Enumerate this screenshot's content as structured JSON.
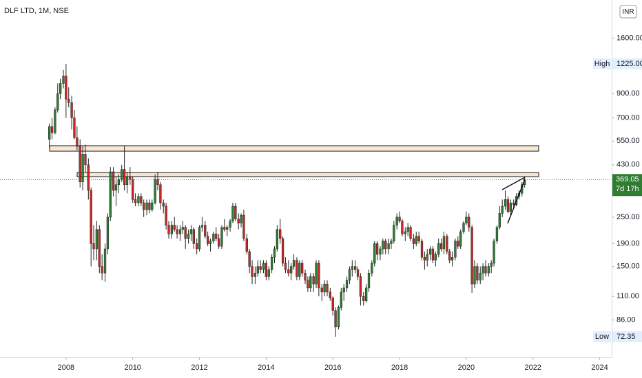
{
  "chart_data": {
    "type": "candlestick",
    "title": "DLF LTD, 1M, NSE",
    "currency": "INR",
    "countdown": "7d 17h",
    "high": {
      "label": "High",
      "value": {
        "value": 1225,
        "label": "1225.00"
      }
    },
    "low": {
      "label": "Low",
      "value": 72.35
    },
    "up_color": "#2e7d32",
    "down_color": "#c62828",
    "wick_color": "#222222",
    "log_scale": true,
    "grid": false,
    "xlim": [
      2006.02,
      2024.36
    ],
    "xticks": [
      2008,
      2010,
      2012,
      2014,
      2016,
      2018,
      2020,
      2022,
      2024
    ],
    "ylim": [
      58.4,
      2375
    ],
    "yticks": [
      {
        "value": 1600,
        "label": "1600.00"
      },
      {
        "value": 900,
        "label": "900.00"
      },
      {
        "value": 700,
        "label": "700.00"
      },
      {
        "value": 550,
        "label": "550.00"
      },
      {
        "value": 430,
        "label": "430.00"
      },
      {
        "value": 250,
        "label": "250.00"
      },
      {
        "value": 190,
        "label": "190.00"
      },
      {
        "value": 150,
        "label": "150.00"
      },
      {
        "value": 110,
        "label": "110.00"
      },
      {
        "value": 86,
        "label": "86.00"
      }
    ],
    "x": [
      2007.5,
      2007.58,
      2007.67,
      2007.75,
      2007.83,
      2007.92,
      2008.0,
      2008.08,
      2008.17,
      2008.25,
      2008.33,
      2008.42,
      2008.5,
      2008.58,
      2008.67,
      2008.75,
      2008.83,
      2008.92,
      2009.0,
      2009.08,
      2009.17,
      2009.25,
      2009.33,
      2009.42,
      2009.5,
      2009.58,
      2009.67,
      2009.75,
      2009.83,
      2009.92,
      2010.0,
      2010.08,
      2010.17,
      2010.25,
      2010.33,
      2010.42,
      2010.5,
      2010.58,
      2010.67,
      2010.75,
      2010.83,
      2010.92,
      2011.0,
      2011.08,
      2011.17,
      2011.25,
      2011.33,
      2011.42,
      2011.5,
      2011.58,
      2011.67,
      2011.75,
      2011.83,
      2011.92,
      2012.0,
      2012.08,
      2012.17,
      2012.25,
      2012.33,
      2012.42,
      2012.5,
      2012.58,
      2012.67,
      2012.75,
      2012.83,
      2012.92,
      2013.0,
      2013.08,
      2013.17,
      2013.25,
      2013.33,
      2013.42,
      2013.5,
      2013.58,
      2013.67,
      2013.75,
      2013.83,
      2013.92,
      2014.0,
      2014.08,
      2014.17,
      2014.25,
      2014.33,
      2014.42,
      2014.5,
      2014.58,
      2014.67,
      2014.75,
      2014.83,
      2014.92,
      2015.0,
      2015.08,
      2015.17,
      2015.25,
      2015.33,
      2015.42,
      2015.5,
      2015.58,
      2015.67,
      2015.75,
      2015.83,
      2015.92,
      2016.0,
      2016.08,
      2016.17,
      2016.25,
      2016.33,
      2016.42,
      2016.5,
      2016.58,
      2016.67,
      2016.75,
      2016.83,
      2016.92,
      2017.0,
      2017.08,
      2017.17,
      2017.25,
      2017.33,
      2017.42,
      2017.5,
      2017.58,
      2017.67,
      2017.75,
      2017.83,
      2017.92,
      2018.0,
      2018.08,
      2018.17,
      2018.25,
      2018.33,
      2018.42,
      2018.5,
      2018.58,
      2018.67,
      2018.75,
      2018.83,
      2018.92,
      2019.0,
      2019.08,
      2019.17,
      2019.25,
      2019.33,
      2019.42,
      2019.5,
      2019.58,
      2019.67,
      2019.75,
      2019.83,
      2019.92,
      2020.0,
      2020.08,
      2020.17,
      2020.25,
      2020.33,
      2020.42,
      2020.5,
      2020.58,
      2020.67,
      2020.75,
      2020.83,
      2020.92,
      2021.0,
      2021.08,
      2021.17,
      2021.25,
      2021.33,
      2021.42,
      2021.5,
      2021.58,
      2021.67,
      2021.75
    ],
    "values": [
      [
        560,
        660,
        515,
        640
      ],
      [
        640,
        700,
        560,
        600
      ],
      [
        600,
        780,
        590,
        760
      ],
      [
        760,
        1000,
        740,
        900
      ],
      [
        900,
        1050,
        850,
        1000
      ],
      [
        1000,
        1150,
        950,
        1080
      ],
      [
        1080,
        1225,
        700,
        850
      ],
      [
        850,
        960,
        780,
        820
      ],
      [
        820,
        880,
        620,
        700
      ],
      [
        700,
        760,
        560,
        570
      ],
      [
        570,
        640,
        500,
        520
      ],
      [
        520,
        560,
        340,
        360
      ],
      [
        360,
        520,
        330,
        480
      ],
      [
        480,
        530,
        400,
        430
      ],
      [
        430,
        460,
        300,
        330
      ],
      [
        330,
        340,
        150,
        190
      ],
      [
        190,
        230,
        160,
        180
      ],
      [
        180,
        240,
        160,
        220
      ],
      [
        220,
        230,
        140,
        150
      ],
      [
        150,
        170,
        130,
        140
      ],
      [
        140,
        190,
        128,
        180
      ],
      [
        180,
        260,
        170,
        250
      ],
      [
        250,
        420,
        240,
        400
      ],
      [
        400,
        420,
        310,
        330
      ],
      [
        330,
        380,
        280,
        350
      ],
      [
        350,
        390,
        320,
        370
      ],
      [
        370,
        430,
        360,
        410
      ],
      [
        410,
        525,
        330,
        350
      ],
      [
        350,
        400,
        320,
        380
      ],
      [
        380,
        420,
        350,
        370
      ],
      [
        370,
        380,
        290,
        300
      ],
      [
        300,
        320,
        280,
        290
      ],
      [
        290,
        320,
        280,
        310
      ],
      [
        310,
        320,
        280,
        290
      ],
      [
        290,
        300,
        250,
        270
      ],
      [
        270,
        300,
        255,
        290
      ],
      [
        290,
        300,
        260,
        270
      ],
      [
        270,
        300,
        265,
        290
      ],
      [
        290,
        390,
        285,
        370
      ],
      [
        370,
        400,
        330,
        350
      ],
      [
        350,
        360,
        270,
        290
      ],
      [
        290,
        300,
        260,
        280
      ],
      [
        280,
        290,
        220,
        230
      ],
      [
        230,
        240,
        200,
        210
      ],
      [
        210,
        240,
        200,
        230
      ],
      [
        230,
        250,
        215,
        220
      ],
      [
        220,
        230,
        200,
        210
      ],
      [
        210,
        230,
        195,
        220
      ],
      [
        220,
        240,
        210,
        225
      ],
      [
        225,
        230,
        180,
        200
      ],
      [
        200,
        220,
        190,
        210
      ],
      [
        210,
        230,
        195,
        220
      ],
      [
        220,
        225,
        180,
        190
      ],
      [
        190,
        200,
        170,
        180
      ],
      [
        180,
        230,
        175,
        225
      ],
      [
        225,
        250,
        215,
        230
      ],
      [
        230,
        240,
        200,
        205
      ],
      [
        205,
        215,
        185,
        190
      ],
      [
        190,
        200,
        175,
        195
      ],
      [
        195,
        215,
        190,
        210
      ],
      [
        210,
        225,
        195,
        200
      ],
      [
        200,
        210,
        180,
        185
      ],
      [
        185,
        230,
        180,
        225
      ],
      [
        225,
        245,
        215,
        220
      ],
      [
        220,
        230,
        205,
        225
      ],
      [
        225,
        245,
        215,
        240
      ],
      [
        240,
        290,
        235,
        280
      ],
      [
        280,
        290,
        240,
        245
      ],
      [
        245,
        260,
        220,
        235
      ],
      [
        235,
        260,
        225,
        255
      ],
      [
        255,
        270,
        195,
        200
      ],
      [
        200,
        210,
        170,
        175
      ],
      [
        175,
        180,
        140,
        150
      ],
      [
        150,
        160,
        125,
        135
      ],
      [
        135,
        150,
        125,
        140
      ],
      [
        140,
        160,
        135,
        150
      ],
      [
        150,
        160,
        140,
        145
      ],
      [
        145,
        160,
        140,
        155
      ],
      [
        155,
        160,
        130,
        135
      ],
      [
        135,
        150,
        130,
        145
      ],
      [
        145,
        170,
        140,
        165
      ],
      [
        165,
        185,
        155,
        180
      ],
      [
        180,
        230,
        175,
        220
      ],
      [
        220,
        245,
        190,
        200
      ],
      [
        200,
        205,
        150,
        155
      ],
      [
        155,
        165,
        140,
        145
      ],
      [
        145,
        160,
        135,
        140
      ],
      [
        140,
        155,
        130,
        150
      ],
      [
        150,
        170,
        145,
        160
      ],
      [
        160,
        165,
        130,
        135
      ],
      [
        135,
        160,
        130,
        155
      ],
      [
        155,
        160,
        135,
        140
      ],
      [
        140,
        145,
        125,
        130
      ],
      [
        130,
        135,
        115,
        120
      ],
      [
        120,
        140,
        115,
        135
      ],
      [
        135,
        140,
        115,
        125
      ],
      [
        125,
        160,
        120,
        155
      ],
      [
        155,
        160,
        110,
        120
      ],
      [
        120,
        125,
        105,
        115
      ],
      [
        115,
        130,
        110,
        125
      ],
      [
        125,
        130,
        110,
        115
      ],
      [
        115,
        120,
        105,
        108
      ],
      [
        108,
        110,
        90,
        95
      ],
      [
        95,
        98,
        72.35,
        80
      ],
      [
        80,
        100,
        78,
        98
      ],
      [
        98,
        120,
        95,
        115
      ],
      [
        115,
        125,
        105,
        120
      ],
      [
        120,
        135,
        115,
        130
      ],
      [
        130,
        150,
        125,
        145
      ],
      [
        145,
        160,
        135,
        150
      ],
      [
        150,
        160,
        140,
        145
      ],
      [
        145,
        150,
        130,
        135
      ],
      [
        135,
        140,
        100,
        110
      ],
      [
        110,
        115,
        100,
        105
      ],
      [
        105,
        125,
        103,
        120
      ],
      [
        120,
        145,
        115,
        140
      ],
      [
        140,
        160,
        135,
        155
      ],
      [
        155,
        195,
        150,
        190
      ],
      [
        190,
        195,
        160,
        170
      ],
      [
        170,
        185,
        160,
        180
      ],
      [
        180,
        200,
        170,
        195
      ],
      [
        195,
        200,
        170,
        180
      ],
      [
        180,
        200,
        170,
        190
      ],
      [
        190,
        200,
        180,
        195
      ],
      [
        195,
        240,
        190,
        230
      ],
      [
        230,
        260,
        220,
        250
      ],
      [
        250,
        265,
        235,
        240
      ],
      [
        240,
        245,
        205,
        210
      ],
      [
        210,
        225,
        195,
        215
      ],
      [
        215,
        235,
        205,
        225
      ],
      [
        225,
        230,
        195,
        200
      ],
      [
        200,
        210,
        180,
        190
      ],
      [
        190,
        215,
        185,
        205
      ],
      [
        205,
        215,
        190,
        195
      ],
      [
        195,
        200,
        160,
        165
      ],
      [
        165,
        175,
        145,
        160
      ],
      [
        160,
        180,
        150,
        170
      ],
      [
        170,
        185,
        160,
        180
      ],
      [
        180,
        185,
        155,
        160
      ],
      [
        160,
        175,
        150,
        170
      ],
      [
        170,
        200,
        165,
        190
      ],
      [
        190,
        200,
        175,
        180
      ],
      [
        180,
        215,
        170,
        205
      ],
      [
        205,
        210,
        170,
        175
      ],
      [
        175,
        180,
        155,
        160
      ],
      [
        160,
        175,
        150,
        165
      ],
      [
        165,
        200,
        160,
        195
      ],
      [
        195,
        205,
        180,
        185
      ],
      [
        185,
        220,
        180,
        215
      ],
      [
        215,
        240,
        210,
        235
      ],
      [
        235,
        265,
        230,
        250
      ],
      [
        250,
        260,
        215,
        225
      ],
      [
        225,
        230,
        114,
        125
      ],
      [
        125,
        160,
        120,
        150
      ],
      [
        150,
        155,
        125,
        130
      ],
      [
        130,
        150,
        125,
        140
      ],
      [
        140,
        155,
        130,
        150
      ],
      [
        150,
        160,
        135,
        140
      ],
      [
        140,
        155,
        135,
        150
      ],
      [
        150,
        160,
        140,
        155
      ],
      [
        155,
        200,
        150,
        195
      ],
      [
        195,
        230,
        190,
        225
      ],
      [
        225,
        280,
        220,
        260
      ],
      [
        260,
        300,
        250,
        280
      ],
      [
        280,
        330,
        270,
        300
      ],
      [
        300,
        310,
        260,
        265
      ],
      [
        265,
        300,
        255,
        290
      ],
      [
        290,
        300,
        275,
        285
      ],
      [
        285,
        320,
        280,
        310
      ],
      [
        310,
        330,
        300,
        320
      ],
      [
        320,
        360,
        310,
        350
      ],
      [
        350,
        378,
        340,
        369.05
      ]
    ]
  }
}
